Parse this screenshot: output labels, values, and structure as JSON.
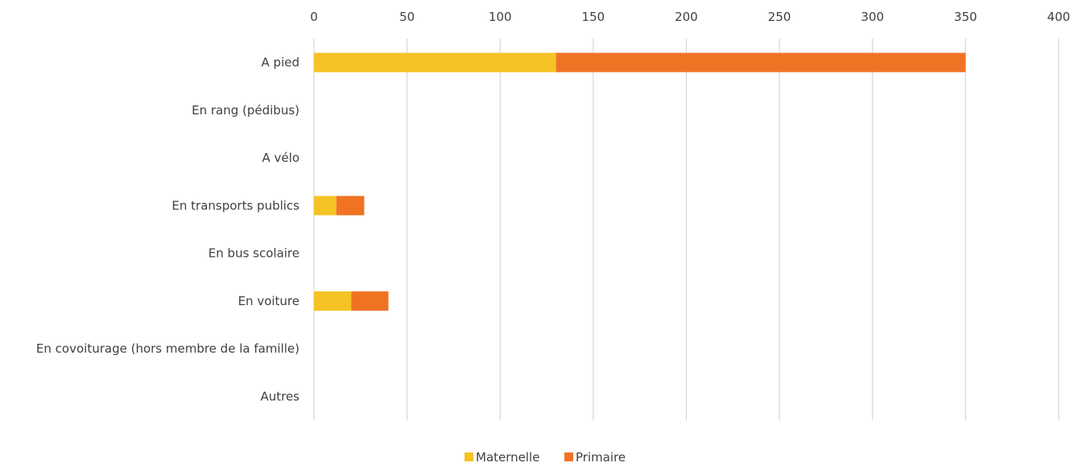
{
  "chart_data": {
    "type": "bar",
    "orientation": "horizontal",
    "stacked": true,
    "title": "",
    "xlabel": "",
    "ylabel": "",
    "xlim": [
      0,
      400
    ],
    "x_ticks": [
      0,
      50,
      100,
      150,
      200,
      250,
      300,
      350,
      400
    ],
    "x_axis_position": "top",
    "grid": true,
    "legend_position": "bottom",
    "categories": [
      "A pied",
      "En rang (pédibus)",
      "A vélo",
      "En transports publics",
      "En bus scolaire",
      "En voiture",
      "En covoiturage (hors membre de la famille)",
      "Autres"
    ],
    "series": [
      {
        "name": "Maternelle",
        "color": "#F5C324",
        "values": [
          130,
          0,
          0,
          12,
          0,
          20,
          0,
          0
        ]
      },
      {
        "name": "Primaire",
        "color": "#F07324",
        "values": [
          220,
          0,
          0,
          15,
          0,
          20,
          0,
          0
        ]
      }
    ]
  }
}
